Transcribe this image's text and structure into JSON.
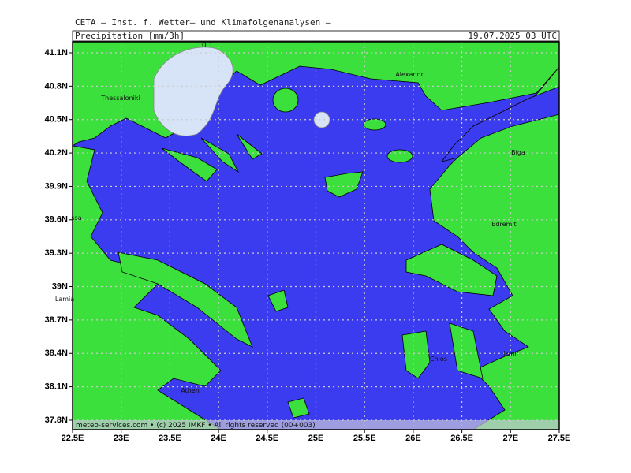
{
  "header": {
    "institute": "CETA – Inst. f. Wetter– und Klimafolgenanalysen –",
    "parameter": "Precipitation [mm/3h]",
    "valid_time": "19.07.2025 03 UTC"
  },
  "map": {
    "lat_labels": [
      "41.1N",
      "40.8N",
      "40.5N",
      "40.2N",
      "39.9N",
      "39.6N",
      "39.3N",
      "39N",
      "38.7N",
      "38.4N",
      "38.1N",
      "37.8N"
    ],
    "lon_labels": [
      "22.5E",
      "23E",
      "23.5E",
      "24E",
      "24.5E",
      "25E",
      "25.5E",
      "26E",
      "26.5E",
      "27E",
      "27.5E"
    ],
    "contour_label": "0.1",
    "places": [
      "Thessaloniki",
      "Alexandr.",
      "Biga",
      "Edremit",
      "ssa",
      "Lamia",
      "Athen",
      "Chios",
      "Izmir"
    ],
    "footer": "meteo-services.com • (c) 2025 IMKF • All rights reserved (00+003)"
  }
}
